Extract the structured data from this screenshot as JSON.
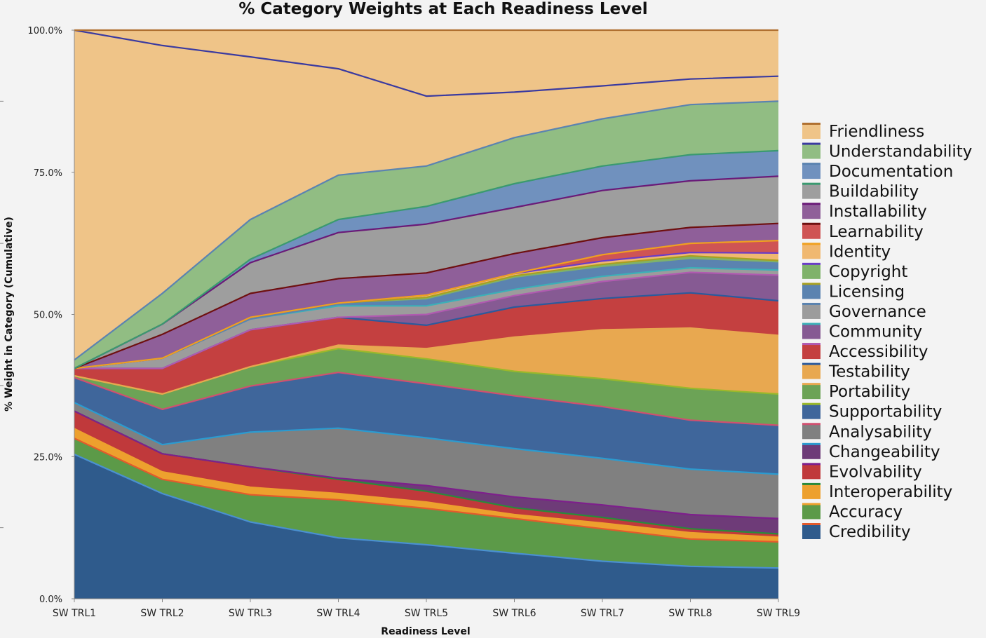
{
  "chart_data": {
    "type": "area",
    "stacked": true,
    "title": "% Category Weights at Each Readiness Level",
    "xlabel": "Readiness Level",
    "ylabel": "% Weight in Category (Cumulative)",
    "ylim": [
      0,
      100
    ],
    "yticks": [
      "0.0%",
      "25.0%",
      "50.0%",
      "75.0%",
      "100.0%"
    ],
    "ytick_values": [
      0,
      25,
      50,
      75,
      100
    ],
    "categories": [
      "SW TRL1",
      "SW TRL2",
      "SW TRL3",
      "SW TRL4",
      "SW TRL5",
      "SW TRL6",
      "SW TRL7",
      "SW TRL8",
      "SW TRL9"
    ],
    "legend_position": "right",
    "cumulative_series": [
      {
        "name": "Credibility",
        "fill": "#2f5b8c",
        "line": "#4a90d0",
        "values": [
          25.4,
          18.5,
          13.5,
          10.7,
          9.5,
          8.0,
          6.6,
          5.7,
          5.4
        ]
      },
      {
        "name": "Accuracy",
        "fill": "#5c9a48",
        "line": "#e35a2c",
        "values": [
          28.2,
          21.0,
          18.3,
          17.4,
          15.9,
          14.1,
          12.3,
          10.5,
          10.0
        ]
      },
      {
        "name": "Interoperability",
        "fill": "#eda02e",
        "line": "#eda02e",
        "values": [
          29.9,
          22.3,
          19.6,
          18.5,
          17.0,
          14.8,
          13.3,
          11.6,
          10.8
        ]
      },
      {
        "name": "Evolvability",
        "fill": "#c0393b",
        "line": "#2a8a3a",
        "values": [
          33.0,
          25.5,
          23.2,
          21.0,
          18.9,
          16.0,
          14.3,
          12.3,
          11.4
        ]
      },
      {
        "name": "Changeability",
        "fill": "#6e3b78",
        "line": "#7e1f8c",
        "values": [
          33.0,
          25.5,
          23.2,
          21.2,
          19.9,
          17.9,
          16.5,
          14.8,
          14.1
        ]
      },
      {
        "name": "Analysability",
        "fill": "#808080",
        "line": "#2b9bd0",
        "values": [
          34.5,
          27.1,
          29.3,
          30.0,
          28.3,
          26.4,
          24.7,
          22.8,
          21.9
        ]
      },
      {
        "name": "Supportability",
        "fill": "#3f669b",
        "line": "#d05070",
        "values": [
          38.9,
          33.3,
          37.4,
          39.8,
          37.8,
          35.7,
          33.8,
          31.4,
          30.5
        ]
      },
      {
        "name": "Portability",
        "fill": "#6ca356",
        "line": "#9ab82a",
        "values": [
          39.2,
          36.0,
          40.8,
          44.0,
          42.2,
          40.0,
          38.7,
          37.0,
          36.0
        ]
      },
      {
        "name": "Testability",
        "fill": "#e8a850",
        "line": "#e8a850",
        "values": [
          39.2,
          36.0,
          40.8,
          44.6,
          44.0,
          46.0,
          47.3,
          47.6,
          46.3
        ]
      },
      {
        "name": "Accessibility",
        "fill": "#c44040",
        "line": "#2c5a9c",
        "values": [
          40.5,
          40.5,
          47.3,
          49.5,
          48.1,
          51.3,
          52.8,
          53.8,
          52.4
        ]
      },
      {
        "name": "Community",
        "fill": "#865a93",
        "line": "#b05ab0",
        "values": [
          40.5,
          40.5,
          47.3,
          49.5,
          50.0,
          53.3,
          55.8,
          57.4,
          56.9
        ]
      },
      {
        "name": "Governance",
        "fill": "#9c9c9c",
        "line": "#3bb0b8",
        "values": [
          40.5,
          42.3,
          49.2,
          51.5,
          51.5,
          54.4,
          56.7,
          58.2,
          57.8
        ]
      },
      {
        "name": "Licensing",
        "fill": "#5b83b0",
        "line": "#5b83b0",
        "values": [
          40.5,
          42.3,
          49.2,
          51.8,
          52.5,
          56.3,
          58.2,
          59.6,
          59.0
        ]
      },
      {
        "name": "Copyright",
        "fill": "#7fb26a",
        "line": "#a8a020",
        "values": [
          40.5,
          42.3,
          49.5,
          52.0,
          53.0,
          56.8,
          58.8,
          60.3,
          59.5
        ]
      },
      {
        "name": "Identity",
        "fill": "#f0b870",
        "line": "#6a3cc8",
        "values": [
          40.5,
          42.3,
          49.5,
          52.0,
          53.4,
          57.2,
          59.4,
          60.9,
          60.8
        ]
      },
      {
        "name": "Learnability",
        "fill": "#cf5454",
        "line": "#f0a020",
        "values": [
          40.5,
          42.3,
          49.5,
          52.0,
          53.4,
          57.2,
          60.5,
          62.5,
          63.0
        ]
      },
      {
        "name": "Installability",
        "fill": "#8f5f99",
        "line": "#6e1010",
        "values": [
          40.5,
          46.5,
          53.7,
          56.3,
          57.3,
          60.7,
          63.5,
          65.3,
          66.0
        ]
      },
      {
        "name": "Buildability",
        "fill": "#9e9e9e",
        "line": "#6a1a78",
        "values": [
          40.5,
          48.3,
          59.1,
          64.4,
          65.9,
          68.8,
          71.8,
          73.5,
          74.3
        ]
      },
      {
        "name": "Documentation",
        "fill": "#7091be",
        "line": "#3a9a70",
        "values": [
          40.5,
          48.3,
          59.7,
          66.7,
          69.0,
          73.0,
          76.1,
          78.1,
          78.8
        ]
      },
      {
        "name": "Understandability",
        "fill": "#91bd83",
        "line": "#5b83b0",
        "values": [
          42.0,
          53.7,
          66.7,
          74.5,
          76.1,
          81.1,
          84.4,
          86.9,
          87.5
        ]
      },
      {
        "name": "Friendliness",
        "fill": "#efc488",
        "line": "#3a3aa0",
        "values": [
          100.0,
          97.3,
          95.3,
          93.2,
          88.4,
          89.1,
          90.2,
          91.4,
          91.9
        ]
      },
      {
        "name": "_top",
        "fill": "#efc488",
        "line": "#b07030",
        "values": [
          100.0,
          100.0,
          100.0,
          100.0,
          100.0,
          100.0,
          100.0,
          100.0,
          100.0
        ]
      }
    ],
    "legend": [
      {
        "name": "Friendliness",
        "fill": "#efc488",
        "line": "#b07030"
      },
      {
        "name": "Understandability",
        "fill": "#91bd83",
        "line": "#3a3aa0"
      },
      {
        "name": "Documentation",
        "fill": "#7091be",
        "line": "#5b83b0"
      },
      {
        "name": "Buildability",
        "fill": "#9e9e9e",
        "line": "#3a9a70"
      },
      {
        "name": "Installability",
        "fill": "#8f5f99",
        "line": "#6a1a78"
      },
      {
        "name": "Learnability",
        "fill": "#cf5454",
        "line": "#6e1010"
      },
      {
        "name": "Identity",
        "fill": "#f0b870",
        "line": "#f0a020"
      },
      {
        "name": "Copyright",
        "fill": "#7fb26a",
        "line": "#6a3cc8"
      },
      {
        "name": "Licensing",
        "fill": "#5b83b0",
        "line": "#a8a020"
      },
      {
        "name": "Governance",
        "fill": "#9c9c9c",
        "line": "#5b83b0"
      },
      {
        "name": "Community",
        "fill": "#865a93",
        "line": "#3bb0b8"
      },
      {
        "name": "Accessibility",
        "fill": "#c44040",
        "line": "#b05ab0"
      },
      {
        "name": "Testability",
        "fill": "#e8a850",
        "line": "#2c5a9c"
      },
      {
        "name": "Portability",
        "fill": "#6ca356",
        "line": "#e8a850"
      },
      {
        "name": "Supportability",
        "fill": "#3f669b",
        "line": "#9ab82a"
      },
      {
        "name": "Analysability",
        "fill": "#808080",
        "line": "#d05070"
      },
      {
        "name": "Changeability",
        "fill": "#6e3b78",
        "line": "#2b9bd0"
      },
      {
        "name": "Evolvability",
        "fill": "#c0393b",
        "line": "#7e1f8c"
      },
      {
        "name": "Interoperability",
        "fill": "#eda02e",
        "line": "#2a8a3a"
      },
      {
        "name": "Accuracy",
        "fill": "#5c9a48",
        "line": "#eda02e"
      },
      {
        "name": "Credibility",
        "fill": "#2f5b8c",
        "line": "#e35a2c"
      }
    ]
  }
}
